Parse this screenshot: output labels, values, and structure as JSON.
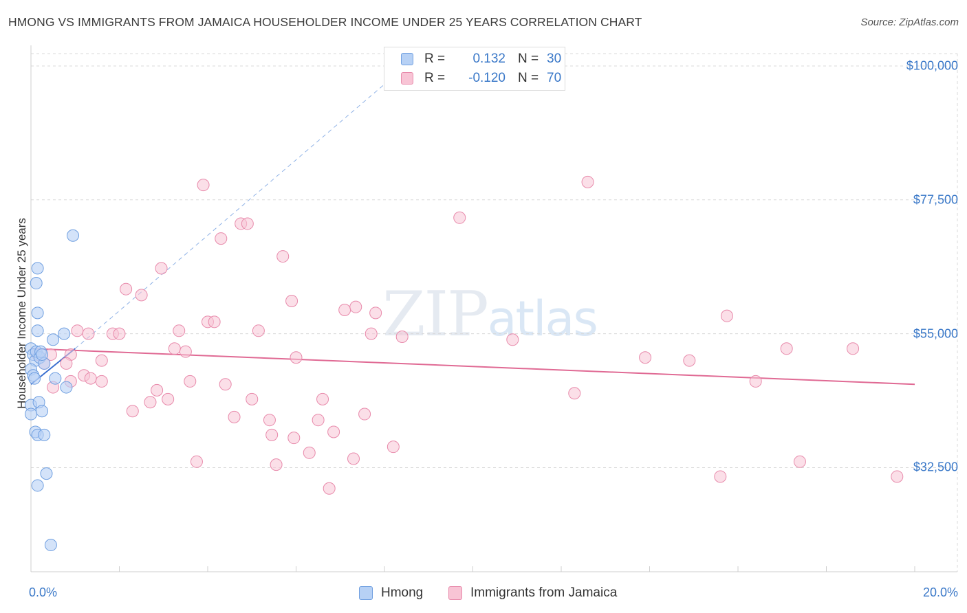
{
  "title": "HMONG VS IMMIGRANTS FROM JAMAICA HOUSEHOLDER INCOME UNDER 25 YEARS CORRELATION CHART",
  "source": "Source: ZipAtlas.com",
  "watermark": {
    "zip": "ZIP",
    "atlas": "atlas"
  },
  "colors": {
    "hmong_fill": "#b7d1f5",
    "hmong_stroke": "#6f9fe0",
    "hmong_line": "#3a6fd0",
    "jamaica_fill": "#f8c4d5",
    "jamaica_stroke": "#e88aab",
    "jamaica_line": "#e06a94",
    "tick_text": "#3a78c8",
    "grid": "#d8d8d8"
  },
  "legend": {
    "rows": [
      {
        "r_label": "R =",
        "r_value": "0.132",
        "n_label": "N =",
        "n_value": "30"
      },
      {
        "r_label": "R =",
        "r_value": "-0.120",
        "n_label": "N =",
        "n_value": "70"
      }
    ]
  },
  "bottom_legend": [
    "Hmong",
    "Immigrants from Jamaica"
  ],
  "chart_data": {
    "type": "scatter",
    "title": "HMONG VS IMMIGRANTS FROM JAMAICA HOUSEHOLDER INCOME UNDER 25 YEARS CORRELATION CHART",
    "xlabel": "",
    "ylabel": "Householder Income Under 25 years",
    "xlim": [
      0,
      20
    ],
    "ylim": [
      15000,
      103000
    ],
    "x_tick_labels": [
      "0.0%",
      "20.0%"
    ],
    "y_ticks": [
      {
        "value": 32500,
        "label": "$32,500"
      },
      {
        "value": 55000,
        "label": "$55,000"
      },
      {
        "value": 77500,
        "label": "$77,500"
      },
      {
        "value": 100000,
        "label": "$100,000"
      }
    ],
    "grid": true,
    "series": [
      {
        "name": "Hmong",
        "r": 0.132,
        "n": 30,
        "trend": {
          "x0": 0.0,
          "y0": 46500,
          "x1": 1.0,
          "y1": 52500
        },
        "trend_extension": {
          "x0": 1.0,
          "y0": 52500,
          "x1": 8.8,
          "y1": 102000
        },
        "points": [
          [
            0.0,
            52500
          ],
          [
            0.05,
            51500
          ],
          [
            0.1,
            50500
          ],
          [
            0.0,
            49000
          ],
          [
            0.05,
            48000
          ],
          [
            0.08,
            47500
          ],
          [
            0.12,
            52000
          ],
          [
            0.2,
            51000
          ],
          [
            0.0,
            43000
          ],
          [
            0.0,
            41500
          ],
          [
            0.18,
            43500
          ],
          [
            0.25,
            42000
          ],
          [
            0.1,
            38500
          ],
          [
            0.15,
            38000
          ],
          [
            0.3,
            38000
          ],
          [
            0.35,
            31500
          ],
          [
            0.15,
            29500
          ],
          [
            0.45,
            19500
          ],
          [
            0.15,
            66000
          ],
          [
            0.12,
            63500
          ],
          [
            0.15,
            58500
          ],
          [
            0.15,
            55500
          ],
          [
            0.5,
            54000
          ],
          [
            0.75,
            55000
          ],
          [
            0.55,
            47500
          ],
          [
            0.8,
            46000
          ],
          [
            0.95,
            71500
          ],
          [
            0.22,
            52000
          ],
          [
            0.3,
            50000
          ],
          [
            0.25,
            51500
          ]
        ]
      },
      {
        "name": "Immigrants from Jamaica",
        "r": -0.12,
        "n": 70,
        "trend": {
          "x0": 0.0,
          "y0": 52500,
          "x1": 20.0,
          "y1": 46500
        },
        "points": [
          [
            0.15,
            51500
          ],
          [
            0.3,
            50000
          ],
          [
            0.45,
            51500
          ],
          [
            0.5,
            46000
          ],
          [
            0.9,
            51500
          ],
          [
            0.8,
            50000
          ],
          [
            0.9,
            47000
          ],
          [
            1.05,
            55500
          ],
          [
            1.2,
            48000
          ],
          [
            1.3,
            55000
          ],
          [
            1.35,
            47500
          ],
          [
            1.6,
            47000
          ],
          [
            1.6,
            50500
          ],
          [
            1.85,
            55000
          ],
          [
            2.0,
            55000
          ],
          [
            2.15,
            62500
          ],
          [
            2.3,
            42000
          ],
          [
            2.5,
            61500
          ],
          [
            2.7,
            43500
          ],
          [
            2.85,
            45500
          ],
          [
            2.95,
            66000
          ],
          [
            3.1,
            44000
          ],
          [
            3.25,
            52500
          ],
          [
            3.35,
            55500
          ],
          [
            3.5,
            52000
          ],
          [
            3.6,
            47000
          ],
          [
            3.75,
            33500
          ],
          [
            3.9,
            80000
          ],
          [
            4.0,
            57000
          ],
          [
            4.15,
            57000
          ],
          [
            4.3,
            71000
          ],
          [
            4.4,
            46500
          ],
          [
            4.6,
            41000
          ],
          [
            4.75,
            73500
          ],
          [
            4.9,
            73500
          ],
          [
            5.0,
            44000
          ],
          [
            5.15,
            55500
          ],
          [
            5.4,
            40500
          ],
          [
            5.45,
            38000
          ],
          [
            5.55,
            33000
          ],
          [
            5.7,
            68000
          ],
          [
            5.9,
            60500
          ],
          [
            5.95,
            37500
          ],
          [
            6.0,
            51000
          ],
          [
            6.3,
            35000
          ],
          [
            6.5,
            40500
          ],
          [
            6.6,
            44000
          ],
          [
            6.75,
            29000
          ],
          [
            6.85,
            38500
          ],
          [
            7.1,
            59000
          ],
          [
            7.3,
            34000
          ],
          [
            7.35,
            59500
          ],
          [
            7.55,
            41500
          ],
          [
            7.7,
            55000
          ],
          [
            7.8,
            58500
          ],
          [
            8.2,
            36000
          ],
          [
            8.4,
            54500
          ],
          [
            9.7,
            74500
          ],
          [
            10.9,
            54000
          ],
          [
            12.3,
            45000
          ],
          [
            12.6,
            80500
          ],
          [
            13.9,
            51000
          ],
          [
            14.9,
            50500
          ],
          [
            15.6,
            31000
          ],
          [
            15.75,
            58000
          ],
          [
            16.4,
            47000
          ],
          [
            17.1,
            52500
          ],
          [
            17.4,
            33500
          ],
          [
            18.6,
            52500
          ],
          [
            19.6,
            31000
          ]
        ]
      }
    ]
  }
}
